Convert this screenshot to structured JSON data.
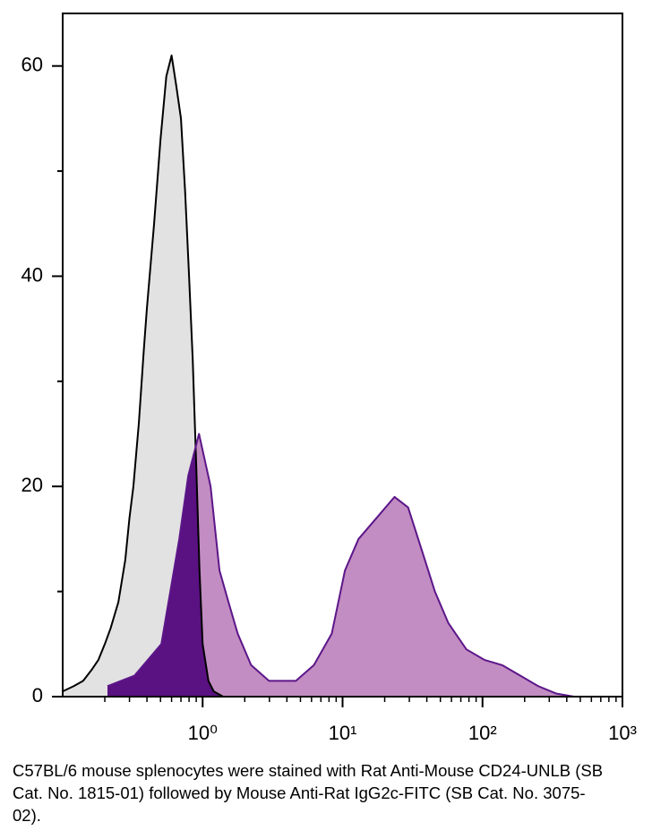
{
  "chart_data": {
    "type": "histogram_overlay",
    "caption": "C57BL/6 mouse splenocytes were stained with Rat Anti-Mouse CD24-UNLB (SB Cat. No. 1815-01) followed by Mouse Anti-Rat IgG2c-FITC (SB Cat. No. 3075-02).",
    "xscale": "log",
    "xlim": [
      0.1,
      1000
    ],
    "xticks": [
      {
        "value": 1,
        "label": "10⁰"
      },
      {
        "value": 10,
        "label": "10¹"
      },
      {
        "value": 100,
        "label": "10²"
      },
      {
        "value": 1000,
        "label": "10³"
      }
    ],
    "xminor_ticks": [
      0.2,
      0.3,
      0.4,
      0.5,
      0.6,
      0.7,
      0.8,
      0.9,
      2,
      3,
      4,
      5,
      6,
      7,
      8,
      9,
      20,
      30,
      40,
      50,
      60,
      70,
      80,
      90,
      200,
      300,
      400,
      500,
      600,
      700,
      800,
      900
    ],
    "ylim": [
      0,
      65
    ],
    "yticks": [
      0,
      20,
      40,
      60
    ],
    "yminor_ticks": [
      10,
      30,
      50
    ],
    "overlap_color": "#5a1182",
    "series": [
      {
        "fill": "#e2e2e2",
        "color": "#000000",
        "x": [
          0.1,
          0.12,
          0.14,
          0.16,
          0.18,
          0.2,
          0.22,
          0.25,
          0.28,
          0.3,
          0.32,
          0.35,
          0.38,
          0.4,
          0.45,
          0.5,
          0.55,
          0.6,
          0.65,
          0.7,
          0.75,
          0.8,
          0.85,
          0.9,
          0.95,
          1.0,
          1.1,
          1.2,
          1.4
        ],
        "values": [
          0.5,
          1,
          1.5,
          2.5,
          3.5,
          5,
          6.5,
          9,
          13,
          17,
          20,
          26,
          33,
          37,
          45,
          53,
          59,
          61,
          58,
          55,
          48,
          40,
          32,
          22,
          12,
          5,
          1.5,
          0.5,
          0
        ]
      },
      {
        "fill": "#c28dc2",
        "color": "#5c1689",
        "x": [
          0.209,
          0.326,
          0.507,
          0.681,
          0.789,
          0.942,
          1.14,
          1.32,
          1.53,
          1.78,
          2.22,
          2.98,
          4.64,
          6.24,
          8.37,
          10.4,
          13.0,
          17.5,
          23.5,
          29.4,
          36.7,
          45.7,
          57.0,
          76.7,
          103,
          138,
          186,
          250,
          335,
          451
        ],
        "values": [
          1,
          2,
          5,
          15,
          21,
          25,
          20,
          12,
          9,
          6,
          3,
          1.5,
          1.5,
          3,
          6,
          12,
          15,
          17,
          19,
          18,
          14,
          10,
          7,
          4.5,
          3.5,
          3,
          2,
          1,
          0.3,
          0
        ]
      }
    ]
  }
}
